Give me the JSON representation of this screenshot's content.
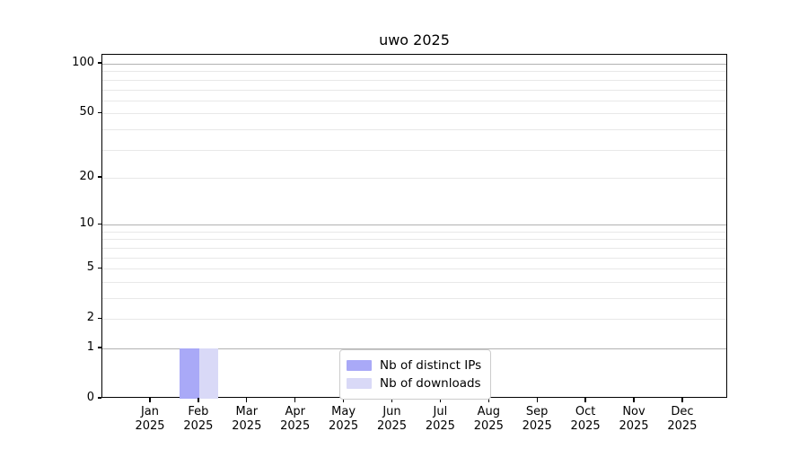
{
  "chart_data": {
    "type": "bar",
    "title": "uwo 2025",
    "xlabel": "",
    "ylabel": "",
    "y_scale": "log1p",
    "ylim": [
      0,
      113
    ],
    "y_ticks": [
      {
        "value": 0,
        "label": "0"
      },
      {
        "value": 1,
        "label": "1"
      },
      {
        "value": 2,
        "label": "2"
      },
      {
        "value": 5,
        "label": "5"
      },
      {
        "value": 10,
        "label": "10"
      },
      {
        "value": 20,
        "label": "20"
      },
      {
        "value": 50,
        "label": "50"
      },
      {
        "value": 100,
        "label": "100"
      }
    ],
    "grid": {
      "major_values": [
        1,
        10,
        100
      ],
      "minor_values": [
        2,
        3,
        4,
        5,
        6,
        7,
        8,
        9,
        20,
        30,
        40,
        50,
        60,
        70,
        80,
        90
      ],
      "major_color": "#b2b2b2",
      "minor_color": "#e8e8e8"
    },
    "categories": [
      {
        "month": "Jan",
        "year": "2025"
      },
      {
        "month": "Feb",
        "year": "2025"
      },
      {
        "month": "Mar",
        "year": "2025"
      },
      {
        "month": "Apr",
        "year": "2025"
      },
      {
        "month": "May",
        "year": "2025"
      },
      {
        "month": "Jun",
        "year": "2025"
      },
      {
        "month": "Jul",
        "year": "2025"
      },
      {
        "month": "Aug",
        "year": "2025"
      },
      {
        "month": "Sep",
        "year": "2025"
      },
      {
        "month": "Oct",
        "year": "2025"
      },
      {
        "month": "Nov",
        "year": "2025"
      },
      {
        "month": "Dec",
        "year": "2025"
      }
    ],
    "series": [
      {
        "name": "Nb of distinct IPs",
        "color": "#a9a9f7",
        "values": [
          0,
          1,
          0,
          0,
          0,
          0,
          0,
          0,
          0,
          0,
          0,
          0
        ]
      },
      {
        "name": "Nb of downloads",
        "color": "#d9d9f7",
        "values": [
          0,
          1,
          0,
          0,
          0,
          0,
          0,
          0,
          0,
          0,
          0,
          0
        ]
      }
    ],
    "legend": {
      "position": "bottom-center"
    }
  }
}
